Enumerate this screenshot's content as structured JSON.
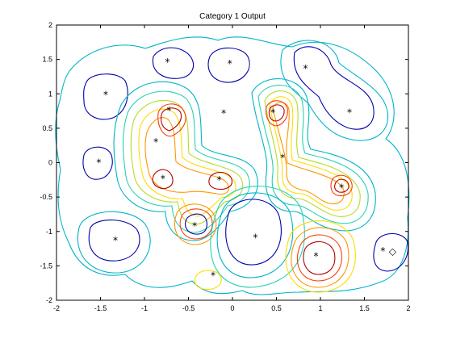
{
  "chart_data": {
    "type": "contour",
    "title": "Category 1 Output",
    "xlabel": "",
    "ylabel": "",
    "xlim": [
      -2,
      2
    ],
    "ylim": [
      -2,
      2
    ],
    "xticks": [
      "-2",
      "-1.5",
      "-1",
      "-0.5",
      "0",
      "0.5",
      "1",
      "1.5",
      "2"
    ],
    "yticks": [
      "-2",
      "-1.5",
      "-1",
      "-0.5",
      "0",
      "0.5",
      "1",
      "1.5",
      "2"
    ],
    "grid": false,
    "colors": {
      "outer": "#0000aa",
      "ring2": "#00b4c8",
      "ring3": "#28d2b4",
      "ring4": "#b4dc28",
      "ring5": "#ffdc00",
      "ring6": "#ff9600",
      "ring7": "#ff3c00",
      "ring8": "#b40000"
    },
    "points": [
      {
        "x": -0.74,
        "y": 1.47,
        "marker": "*"
      },
      {
        "x": -0.03,
        "y": 1.45,
        "marker": "*"
      },
      {
        "x": 0.83,
        "y": 1.38,
        "marker": "*"
      },
      {
        "x": -1.44,
        "y": 1.0,
        "marker": "*"
      },
      {
        "x": 1.33,
        "y": 0.74,
        "marker": "*"
      },
      {
        "x": -0.1,
        "y": 0.73,
        "marker": "*"
      },
      {
        "x": 0.46,
        "y": 0.74,
        "marker": "*"
      },
      {
        "x": -0.72,
        "y": 0.77,
        "marker": "*"
      },
      {
        "x": -0.87,
        "y": 0.31,
        "marker": "*"
      },
      {
        "x": -1.52,
        "y": 0.01,
        "marker": "*"
      },
      {
        "x": 0.57,
        "y": 0.08,
        "marker": "*"
      },
      {
        "x": -0.79,
        "y": -0.22,
        "marker": "*"
      },
      {
        "x": -0.15,
        "y": -0.24,
        "marker": "*"
      },
      {
        "x": 1.24,
        "y": -0.35,
        "marker": "*"
      },
      {
        "x": -0.43,
        "y": -0.91,
        "marker": "*"
      },
      {
        "x": 0.26,
        "y": -1.08,
        "marker": "*"
      },
      {
        "x": -1.33,
        "y": -1.12,
        "marker": "*"
      },
      {
        "x": 0.95,
        "y": -1.35,
        "marker": "*"
      },
      {
        "x": 1.71,
        "y": -1.27,
        "marker": "*"
      },
      {
        "x": 1.82,
        "y": -1.28,
        "marker": "◇"
      },
      {
        "x": -0.22,
        "y": -1.63,
        "marker": "*"
      }
    ]
  }
}
